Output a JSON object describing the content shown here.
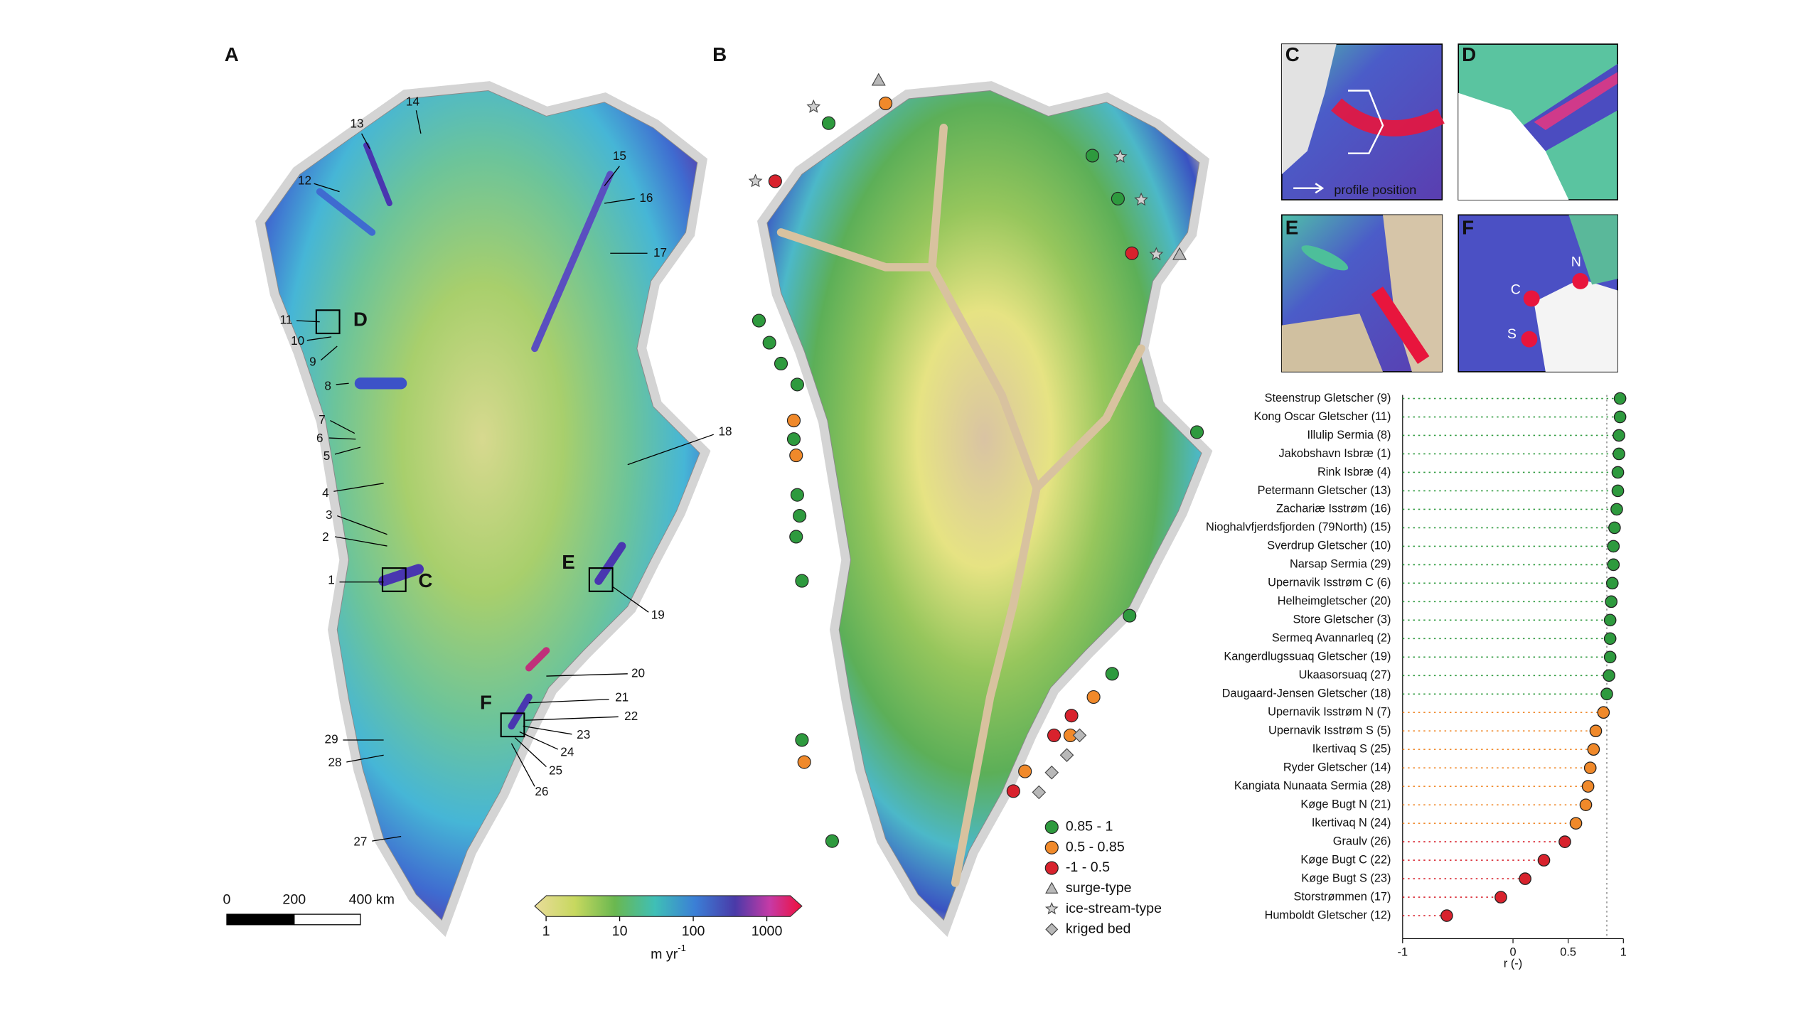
{
  "map_a": {
    "label": "A",
    "glacier_labels": [
      "1",
      "2",
      "3",
      "4",
      "5",
      "6",
      "7",
      "8",
      "9",
      "10",
      "11",
      "12",
      "13",
      "14",
      "15",
      "16",
      "17",
      "18",
      "19",
      "20",
      "21",
      "22",
      "23",
      "24",
      "25",
      "26",
      "27",
      "28",
      "29"
    ],
    "box_labels": [
      "C",
      "D",
      "E",
      "F"
    ],
    "scale_bar": [
      "0",
      "200",
      "400 km"
    ],
    "colorbar": {
      "ticks": [
        1,
        10,
        100,
        1000
      ],
      "lim": [
        0.7,
        3000
      ],
      "log": true,
      "unit": "m yr",
      "unit_sup": "-1"
    }
  },
  "map_b": {
    "label": "B",
    "legend": [
      {
        "label": "0.85 - 1",
        "symbol": "circle",
        "color": "#2e9a3e"
      },
      {
        "label": "0.5 - 0.85",
        "symbol": "circle",
        "color": "#f0892a"
      },
      {
        "label": "-1 - 0.5",
        "symbol": "circle",
        "color": "#d8222d"
      },
      {
        "label": "surge-type",
        "symbol": "triangle",
        "color": "#b8b8b8"
      },
      {
        "label": "ice-stream-type",
        "symbol": "star",
        "color": "#cfcfcf"
      },
      {
        "label": "kriged bed",
        "symbol": "diamond",
        "color": "#b8b8b8"
      }
    ]
  },
  "insets": {
    "labels": [
      "C",
      "D",
      "E",
      "F"
    ],
    "profile_note": "profile position",
    "f_labels": [
      "N",
      "C",
      "S"
    ]
  },
  "chart_data": {
    "type": "dot",
    "x_label": "r (-)",
    "categories": [
      "Steenstrup Gletscher (9)",
      "Kong Oscar Gletscher (11)",
      "Illulip Sermia (8)",
      "Jakobshavn Isbræ (1)",
      "Rink Isbræ (4)",
      "Petermann Gletscher (13)",
      "Zachariæ Isstrøm (16)",
      "Nioghalvfjerdsfjorden (79North) (15)",
      "Sverdrup Gletscher (10)",
      "Narsap Sermia (29)",
      "Upernavik Isstrøm C (6)",
      "Helheimgletscher (20)",
      "Store Gletscher (3)",
      "Sermeq Avannarleq (2)",
      "Kangerdlugssuaq Gletscher (19)",
      "Ukaasorsuaq (27)",
      "Daugaard-Jensen Gletscher (18)",
      "Upernavik Isstrøm N (7)",
      "Upernavik Isstrøm S (5)",
      "Ikertivaq S (25)",
      "Ryder Gletscher (14)",
      "Kangiata Nunaata Sermia (28)",
      "Køge Bugt N (21)",
      "Ikertivaq N (24)",
      "Graulv (26)",
      "Køge Bugt C (22)",
      "Køge Bugt S (23)",
      "Storstrømmen (17)",
      "Humboldt Gletscher (12)"
    ],
    "values": [
      0.97,
      0.97,
      0.96,
      0.96,
      0.95,
      0.95,
      0.94,
      0.92,
      0.91,
      0.91,
      0.9,
      0.89,
      0.88,
      0.88,
      0.88,
      0.87,
      0.85,
      0.82,
      0.75,
      0.73,
      0.7,
      0.68,
      0.66,
      0.57,
      0.47,
      0.28,
      0.11,
      -0.11,
      -0.6
    ],
    "colors": [
      "#2e9a3e",
      "#2e9a3e",
      "#2e9a3e",
      "#2e9a3e",
      "#2e9a3e",
      "#2e9a3e",
      "#2e9a3e",
      "#2e9a3e",
      "#2e9a3e",
      "#2e9a3e",
      "#2e9a3e",
      "#2e9a3e",
      "#2e9a3e",
      "#2e9a3e",
      "#2e9a3e",
      "#2e9a3e",
      "#2e9a3e",
      "#f0892a",
      "#f0892a",
      "#f0892a",
      "#f0892a",
      "#f0892a",
      "#f0892a",
      "#f0892a",
      "#d8222d",
      "#d8222d",
      "#d8222d",
      "#d8222d",
      "#d8222d"
    ],
    "xlim": [
      -1,
      1
    ],
    "xticks": [
      -1,
      0,
      0.5,
      1
    ],
    "reference_line": 0.85
  }
}
